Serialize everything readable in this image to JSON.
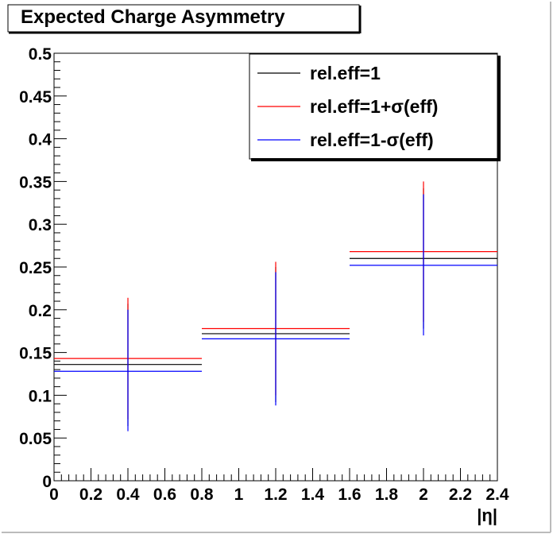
{
  "chart_data": {
    "type": "scatter",
    "title": "Expected Charge Asymmetry",
    "xlabel": "|η|",
    "ylabel": "",
    "xlim": [
      0,
      2.4
    ],
    "ylim": [
      0,
      0.5
    ],
    "x_ticks": [
      0,
      0.2,
      0.4,
      0.6,
      0.8,
      1,
      1.2,
      1.4,
      1.6,
      1.8,
      2,
      2.2,
      2.4
    ],
    "x_tick_labels": [
      "0",
      "0.2",
      "0.4",
      "0.6",
      "0.8",
      "1",
      "1.2",
      "1.4",
      "1.6",
      "1.8",
      "2",
      "2.2",
      "2.4"
    ],
    "y_ticks": [
      0,
      0.05,
      0.1,
      0.15,
      0.2,
      0.25,
      0.3,
      0.35,
      0.4,
      0.45,
      0.5
    ],
    "y_tick_labels": [
      "0",
      "0.05",
      "0.1",
      "0.15",
      "0.2",
      "0.25",
      "0.3",
      "0.35",
      "0.4",
      "0.45",
      "0.5"
    ],
    "grid": false,
    "legend_position": "top-right",
    "series": [
      {
        "name": "rel.eff=1",
        "color": "#000000",
        "points": [
          {
            "x": 0.4,
            "xlow": 0,
            "xhigh": 0.8,
            "y": 0.136,
            "ylow": 0.064,
            "yhigh": 0.207
          },
          {
            "x": 1.2,
            "xlow": 0.8,
            "xhigh": 1.6,
            "y": 0.172,
            "ylow": 0.092,
            "yhigh": 0.25
          },
          {
            "x": 2.0,
            "xlow": 1.6,
            "xhigh": 2.4,
            "y": 0.26,
            "ylow": 0.178,
            "yhigh": 0.342
          }
        ]
      },
      {
        "name": "rel.eff=1+σ(eff)",
        "color": "#ff0000",
        "points": [
          {
            "x": 0.4,
            "xlow": 0,
            "xhigh": 0.8,
            "y": 0.143,
            "ylow": 0.072,
            "yhigh": 0.214
          },
          {
            "x": 1.2,
            "xlow": 0.8,
            "xhigh": 1.6,
            "y": 0.178,
            "ylow": 0.1,
            "yhigh": 0.256
          },
          {
            "x": 2.0,
            "xlow": 1.6,
            "xhigh": 2.4,
            "y": 0.268,
            "ylow": 0.186,
            "yhigh": 0.35
          }
        ]
      },
      {
        "name": "rel.eff=1-σ(eff)",
        "color": "#0000ff",
        "points": [
          {
            "x": 0.4,
            "xlow": 0,
            "xhigh": 0.8,
            "y": 0.128,
            "ylow": 0.058,
            "yhigh": 0.2
          },
          {
            "x": 1.2,
            "xlow": 0.8,
            "xhigh": 1.6,
            "y": 0.166,
            "ylow": 0.088,
            "yhigh": 0.244
          },
          {
            "x": 2.0,
            "xlow": 1.6,
            "xhigh": 2.4,
            "y": 0.252,
            "ylow": 0.17,
            "yhigh": 0.335
          }
        ]
      }
    ]
  }
}
